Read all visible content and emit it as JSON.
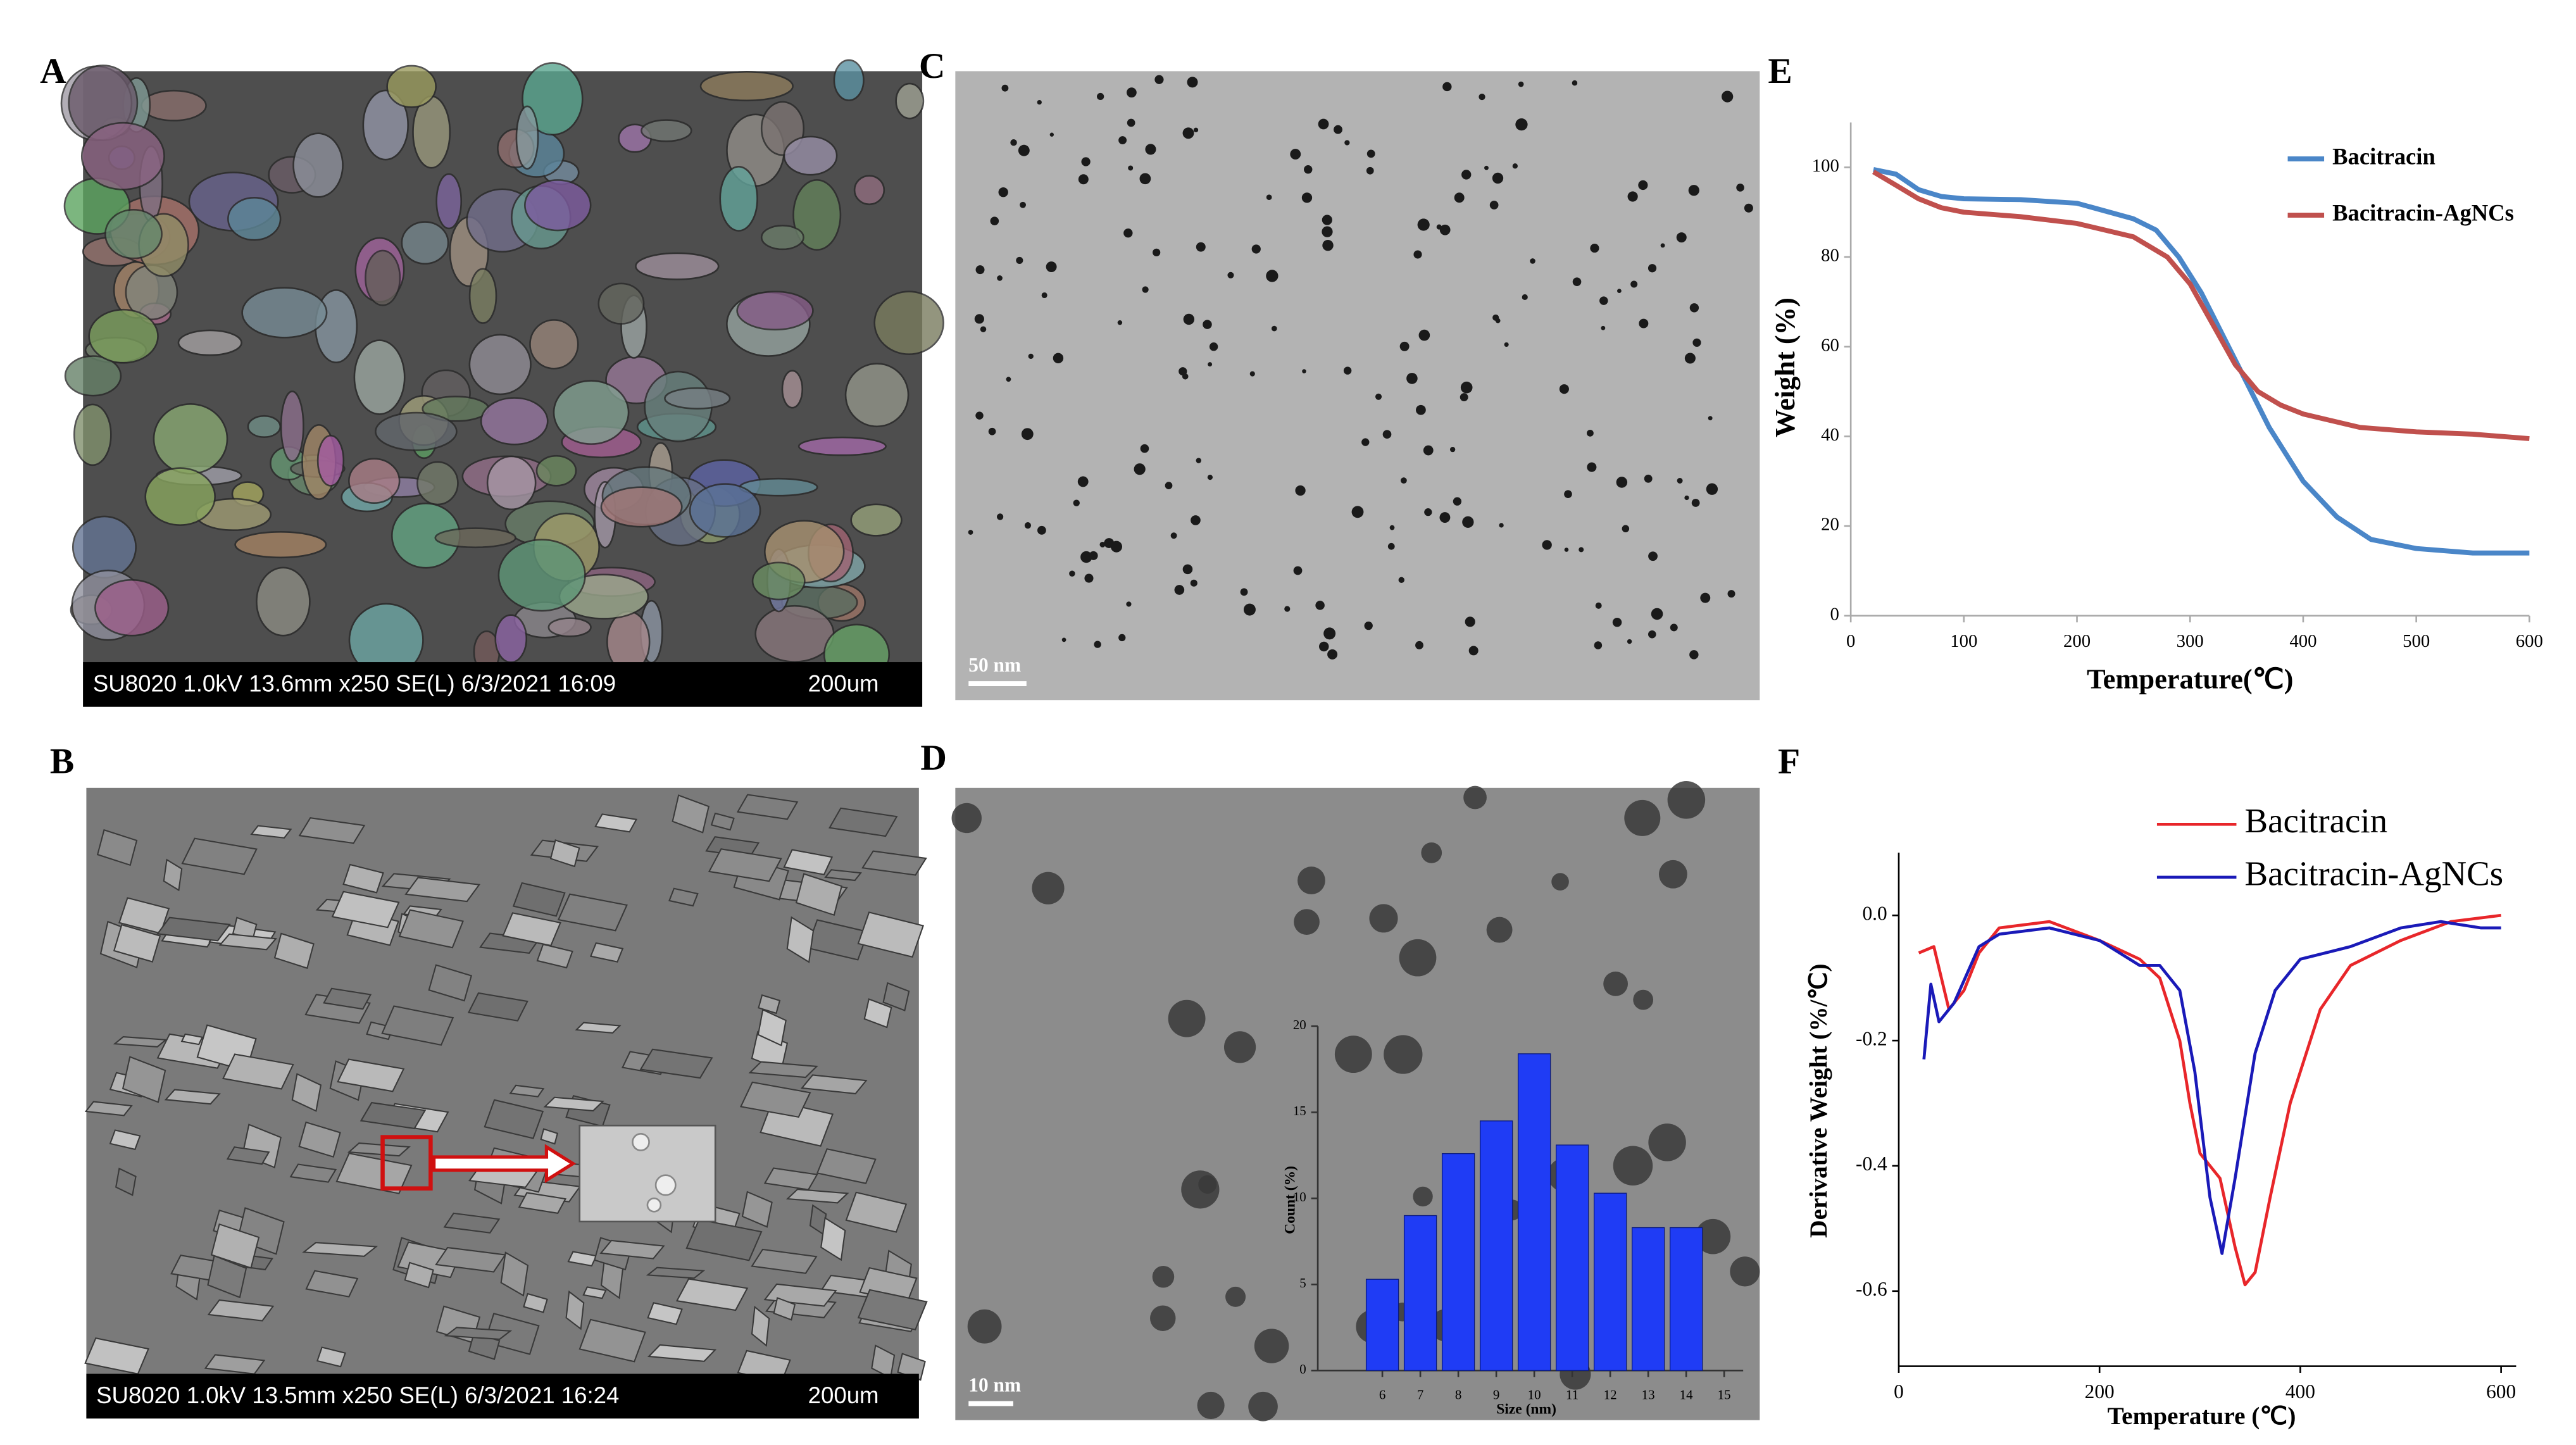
{
  "figure": {
    "A": {
      "label": "A",
      "caption": "SU8020 1.0kV 13.6mm x250 SE(L) 6/3/2021 16:09",
      "scale": "200um"
    },
    "B": {
      "label": "B",
      "caption": "SU8020 1.0kV 13.5mm x250 SE(L) 6/3/2021 16:24",
      "scale": "200um"
    },
    "C": {
      "label": "C",
      "scale": "50 nm"
    },
    "D": {
      "label": "D",
      "scale": "10 nm"
    }
  },
  "chart_data": [
    {
      "type": "line",
      "panel_label": "E",
      "xlabel": "Temperature(℃)",
      "ylabel": "Weight (%)",
      "xlim": [
        0,
        600
      ],
      "xticks": [
        0,
        100,
        200,
        300,
        400,
        500,
        600
      ],
      "ylim": [
        0,
        110
      ],
      "yticks": [
        0,
        20,
        40,
        60,
        80,
        100
      ],
      "legend": "top-right",
      "series": [
        {
          "name": "Bacitracin",
          "color": "#4a86c8",
          "x": [
            20,
            40,
            60,
            80,
            100,
            150,
            200,
            250,
            270,
            290,
            310,
            330,
            350,
            370,
            400,
            430,
            460,
            500,
            550,
            600
          ],
          "values": [
            99.5,
            98.5,
            95,
            93.5,
            93,
            92.8,
            92,
            88.5,
            86,
            80,
            72,
            62,
            52,
            42,
            30,
            22,
            17,
            15,
            14,
            14
          ]
        },
        {
          "name": "Bacitracin-AgNCs",
          "color": "#c0504d",
          "x": [
            20,
            40,
            60,
            80,
            100,
            150,
            200,
            250,
            280,
            300,
            320,
            340,
            360,
            380,
            400,
            450,
            500,
            550,
            600
          ],
          "values": [
            99,
            96,
            93,
            91,
            90,
            89,
            87.5,
            84.5,
            80,
            74,
            65,
            56,
            50,
            47,
            45,
            42,
            41,
            40.5,
            39.5
          ]
        }
      ]
    },
    {
      "type": "line",
      "panel_label": "F",
      "xlabel": "Temperature (℃)",
      "ylabel": "Derivative Weight (%/℃)",
      "xlim": [
        0,
        615
      ],
      "xticks": [
        0,
        200,
        400,
        600
      ],
      "ylim": [
        -0.72,
        0.1
      ],
      "yticks": [
        {
          "value": 0,
          "label": "0.0"
        },
        -0.2,
        -0.4,
        -0.6
      ],
      "legend": "top-right",
      "series": [
        {
          "name": "Bacitracin",
          "color": "#e8262a",
          "x": [
            20,
            35,
            50,
            65,
            80,
            100,
            150,
            200,
            240,
            260,
            280,
            290,
            300,
            320,
            335,
            345,
            355,
            370,
            390,
            420,
            450,
            500,
            550,
            600
          ],
          "values": [
            -0.06,
            -0.05,
            -0.15,
            -0.12,
            -0.06,
            -0.02,
            -0.01,
            -0.04,
            -0.07,
            -0.1,
            -0.2,
            -0.3,
            -0.38,
            -0.42,
            -0.53,
            -0.59,
            -0.57,
            -0.45,
            -0.3,
            -0.15,
            -0.08,
            -0.04,
            -0.01,
            0.0
          ]
        },
        {
          "name": "Bacitracin-AgNCs",
          "color": "#1a1ab8",
          "x": [
            25,
            32,
            40,
            55,
            80,
            100,
            150,
            200,
            240,
            260,
            280,
            295,
            310,
            322,
            335,
            355,
            375,
            400,
            450,
            500,
            540,
            580,
            600
          ],
          "values": [
            -0.23,
            -0.11,
            -0.17,
            -0.14,
            -0.05,
            -0.03,
            -0.02,
            -0.04,
            -0.08,
            -0.08,
            -0.12,
            -0.25,
            -0.45,
            -0.54,
            -0.42,
            -0.22,
            -0.12,
            -0.07,
            -0.05,
            -0.02,
            -0.01,
            -0.02,
            -0.02
          ]
        }
      ]
    },
    {
      "type": "bar",
      "xlabel": "Size (nm)",
      "ylabel": "Count (%)",
      "color": "#1f3cf5",
      "x": [
        6,
        7,
        8,
        9,
        10,
        11,
        12,
        13,
        14
      ],
      "values": [
        5.3,
        9.0,
        12.6,
        14.5,
        18.4,
        13.1,
        10.3,
        8.3,
        8.3
      ],
      "xlim": [
        4.3,
        15.5
      ],
      "xticks": [
        6,
        7,
        8,
        9,
        10,
        11,
        12,
        13,
        14,
        15
      ],
      "ylim": [
        0,
        20
      ],
      "yticks": [
        0,
        5,
        10,
        15,
        20
      ]
    }
  ]
}
